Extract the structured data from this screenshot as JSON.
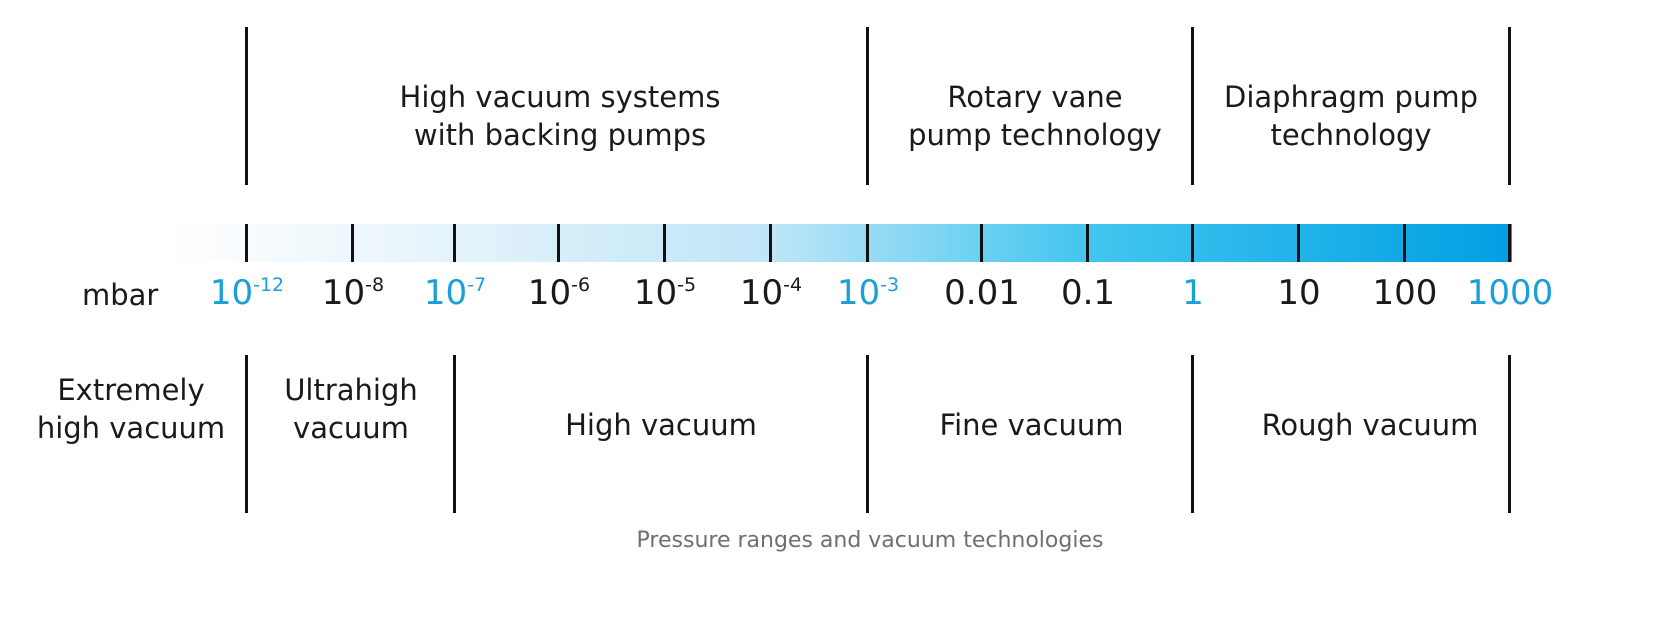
{
  "unit": "mbar",
  "technologies": [
    {
      "label": "High vacuum systems\nwith backing pumps"
    },
    {
      "label": "Rotary vane\npump technology"
    },
    {
      "label": "Diaphragm pump\ntechnology"
    }
  ],
  "scale": [
    {
      "base": "10",
      "exp": "-12",
      "highlight": true
    },
    {
      "base": "10",
      "exp": "-8",
      "highlight": false
    },
    {
      "base": "10",
      "exp": "-7",
      "highlight": true
    },
    {
      "base": "10",
      "exp": "-6",
      "highlight": false
    },
    {
      "base": "10",
      "exp": "-5",
      "highlight": false
    },
    {
      "base": "10",
      "exp": "-4",
      "highlight": false
    },
    {
      "base": "10",
      "exp": "-3",
      "highlight": true
    },
    {
      "base": "0.01",
      "exp": "",
      "highlight": false
    },
    {
      "base": "0.1",
      "exp": "",
      "highlight": false
    },
    {
      "base": "1",
      "exp": "",
      "highlight": true
    },
    {
      "base": "10",
      "exp": "",
      "highlight": false
    },
    {
      "base": "100",
      "exp": "",
      "highlight": false
    },
    {
      "base": "1000",
      "exp": "",
      "highlight": true
    }
  ],
  "ranges": [
    {
      "label": "Extremely\nhigh vacuum"
    },
    {
      "label": "Ultrahigh\nvacuum"
    },
    {
      "label": "High vacuum"
    },
    {
      "label": "Fine vacuum"
    },
    {
      "label": "Rough vacuum"
    }
  ],
  "caption": "Pressure ranges and vacuum technologies",
  "colors": {
    "highlight": "#1a9fd8",
    "text": "#1a1a1a",
    "line": "#111111",
    "caption": "#6f6f6f",
    "bar_start": "#ffffff",
    "bar_end": "#009fe3"
  }
}
